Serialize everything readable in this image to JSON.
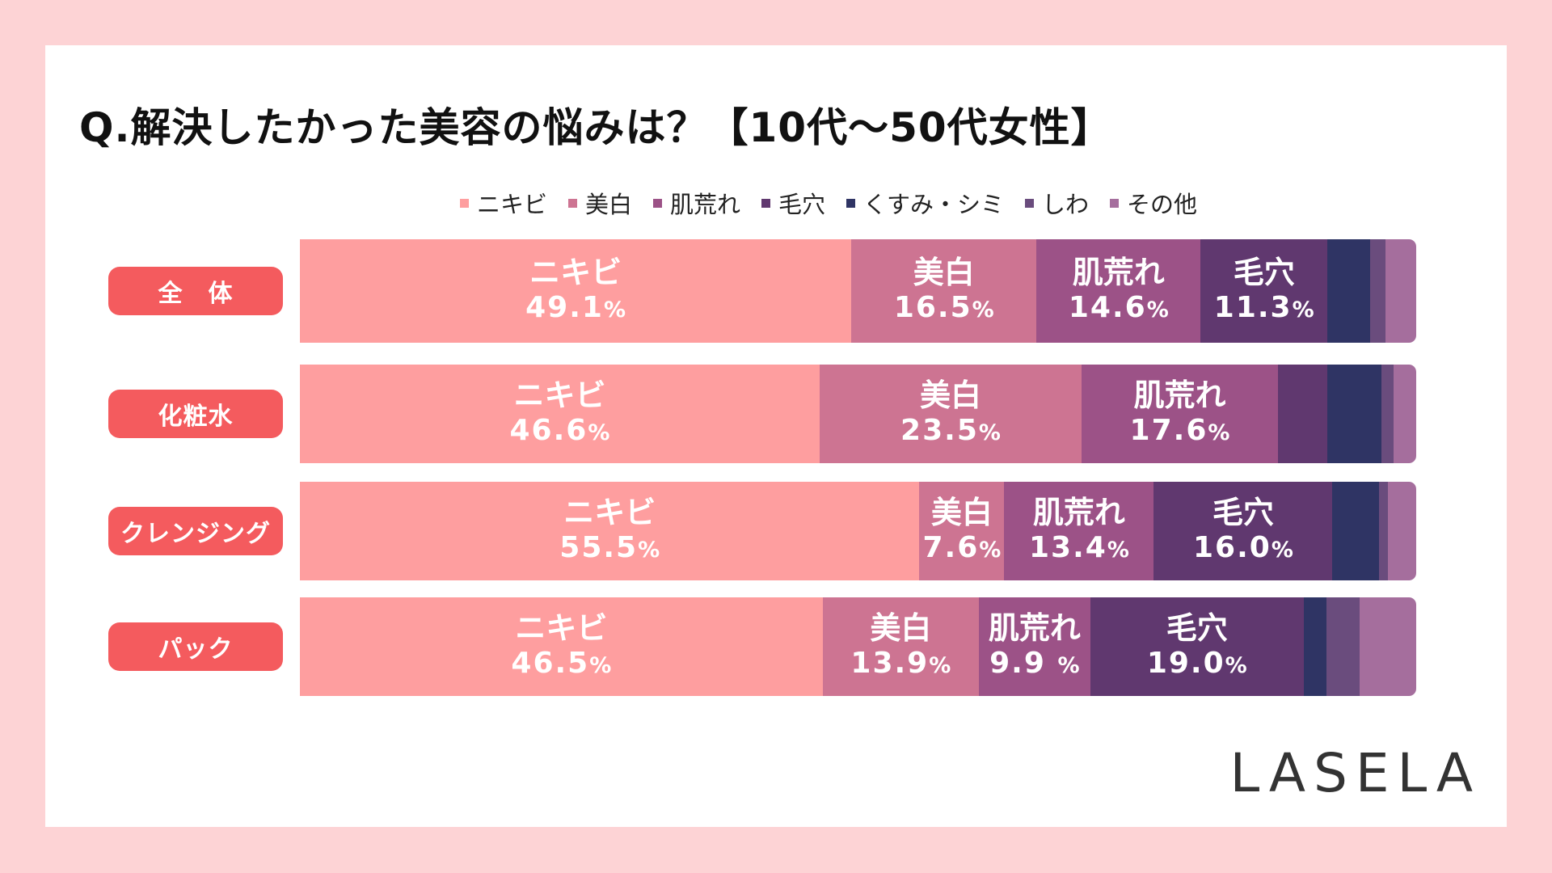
{
  "title": "Q.解決したかった美容の悩みは？【10代〜50代女性】",
  "logo": "LASELA",
  "chart_data": {
    "type": "bar",
    "orientation": "horizontal",
    "stacked": true,
    "title": "Q.解決したかった美容の悩みは？【10代〜50代女性】",
    "legend_position": "top",
    "categories": [
      "全　体",
      "化粧水",
      "クレンジング",
      "パック"
    ],
    "series": [
      {
        "name": "ニキビ",
        "color": "#fe9e9f",
        "values": [
          49.1,
          46.6,
          55.5,
          46.5
        ],
        "labels": [
          "49.1",
          "46.6",
          "55.5",
          "46.5"
        ]
      },
      {
        "name": "美白",
        "color": "#cd7492",
        "values": [
          16.5,
          23.5,
          7.6,
          13.9
        ],
        "labels": [
          "16.5",
          "23.5",
          "7.6",
          "13.9"
        ]
      },
      {
        "name": "肌荒れ",
        "color": "#9c5287",
        "values": [
          14.6,
          17.6,
          13.4,
          9.9
        ],
        "labels": [
          "14.6",
          "17.6",
          "13.4",
          "9.9 "
        ]
      },
      {
        "name": "毛穴",
        "color": "#60386f",
        "values": [
          11.3,
          4.4,
          16.0,
          19.0
        ],
        "labels": [
          "11.3",
          null,
          "16.0",
          "19.0"
        ]
      },
      {
        "name": "くすみ・シミ",
        "color": "#2f3464",
        "values": [
          3.8,
          4.9,
          4.2,
          2.0
        ],
        "labels": [
          null,
          null,
          null,
          null
        ]
      },
      {
        "name": "しわ",
        "color": "#6a4c7d",
        "values": [
          1.4,
          1.1,
          0.8,
          3.0
        ],
        "labels": [
          null,
          null,
          null,
          null
        ]
      },
      {
        "name": "その他",
        "color": "#a56e9d",
        "values": [
          2.7,
          2.0,
          2.5,
          5.0
        ],
        "labels": [
          null,
          null,
          null,
          null
        ]
      }
    ],
    "value_suffix": "%",
    "xlim": [
      0,
      100
    ]
  }
}
